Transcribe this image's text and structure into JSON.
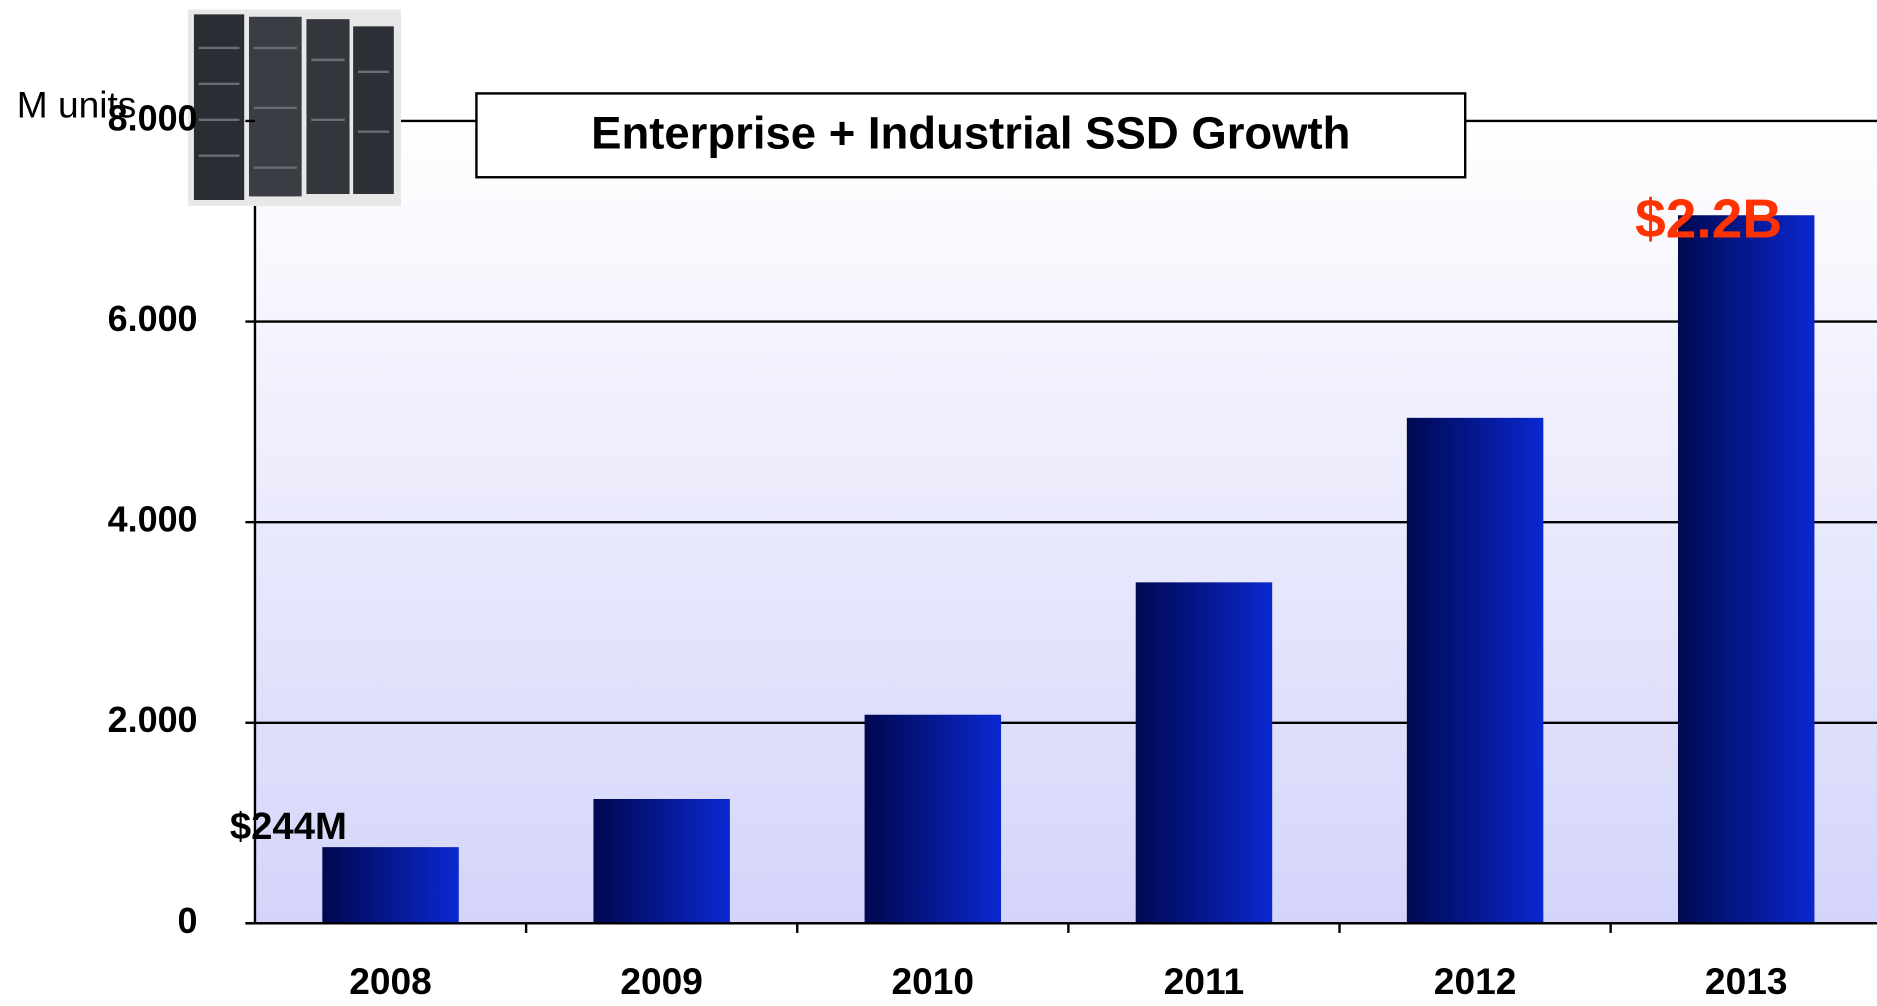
{
  "chart_data": {
    "type": "bar",
    "title": "Enterprise + Industrial SSD Growth",
    "y_label": "M units",
    "categories": [
      "2008",
      "2009",
      "2010",
      "2011",
      "2012",
      "2013"
    ],
    "values": [
      760,
      1240,
      2080,
      3400,
      5040,
      7060
    ],
    "color": "#0a28d0",
    "ylim": [
      0,
      8000
    ],
    "yticks": [
      0,
      {
        "value": 2000,
        "label": "2.000"
      },
      {
        "value": 4000,
        "label": "4.000"
      },
      {
        "value": 6000,
        "label": "6.000"
      },
      {
        "value": 8000,
        "label": "8.000"
      }
    ],
    "grid": true,
    "annotations": [
      {
        "text": "$244M",
        "color": "#000000"
      },
      {
        "text": "$2.2B",
        "color": "#ff3300"
      }
    ]
  }
}
